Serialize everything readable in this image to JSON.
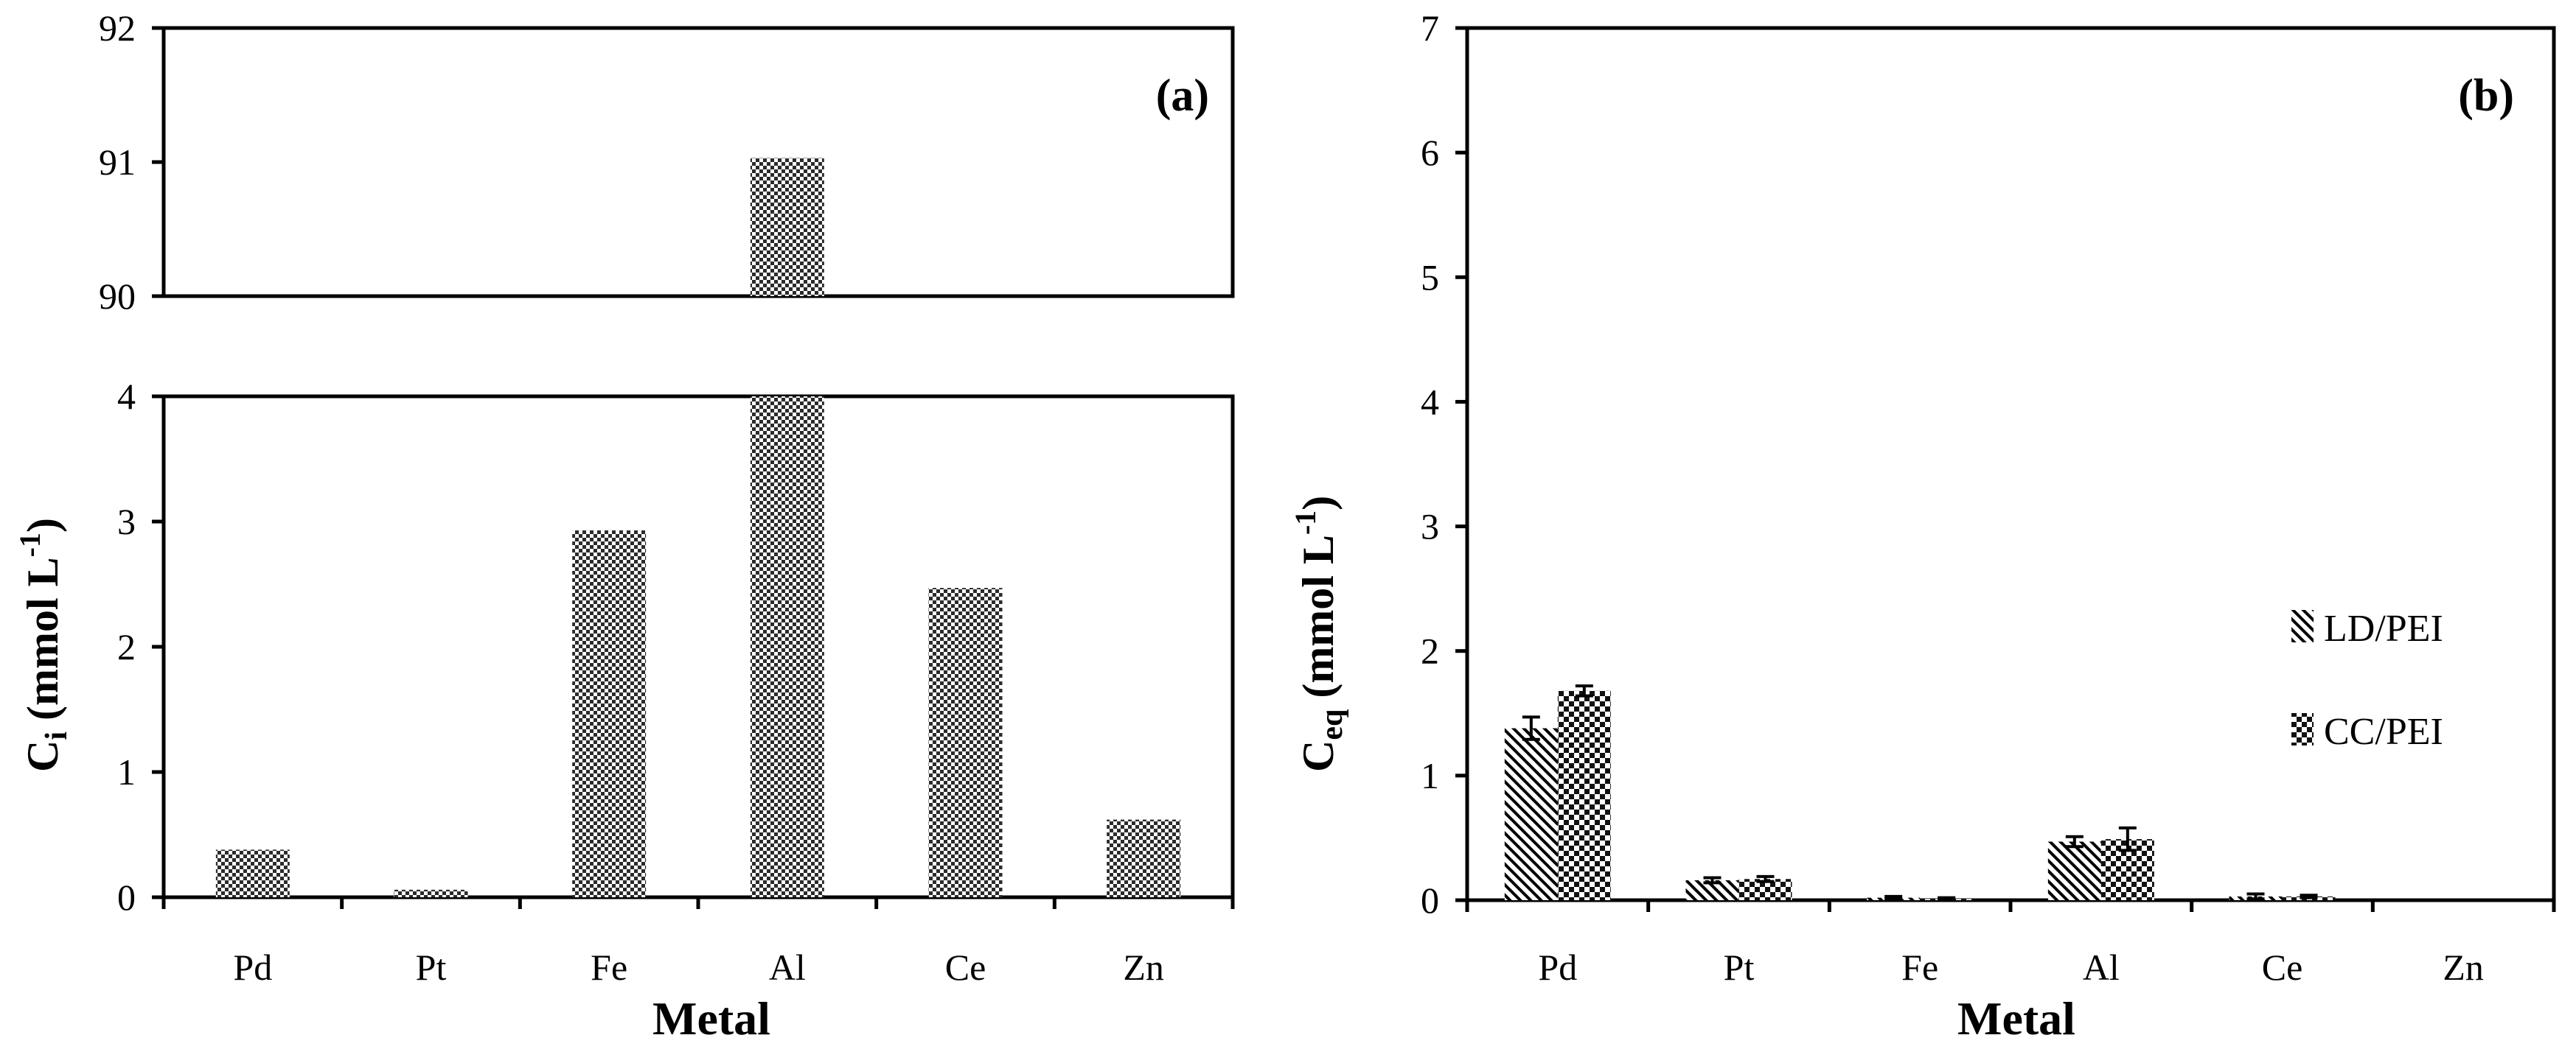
{
  "chart_data": [
    {
      "type": "bar",
      "panel_label": "(a)",
      "broken_axis": true,
      "categories": [
        "Pd",
        "Pt",
        "Fe",
        "Al",
        "Ce",
        "Zn"
      ],
      "values": [
        0.38,
        0.06,
        2.93,
        91.03,
        2.47,
        0.62
      ],
      "xlabel": "Metal",
      "ylabel": "Ci (mmol L-1)",
      "ylabel_parts": {
        "main": "C",
        "sub": "i",
        "unit": " (mmol L",
        "sup": "-1",
        "close": ")"
      },
      "ylim_lower": [
        0,
        4
      ],
      "ylim_upper": [
        90,
        92
      ],
      "yticks_lower": [
        "0",
        "1",
        "2",
        "3",
        "4"
      ],
      "yticks_upper": [
        "90",
        "91",
        "92"
      ],
      "pattern": "checkerboard"
    },
    {
      "type": "bar",
      "panel_label": "(b)",
      "categories": [
        "Pd",
        "Pt",
        "Fe",
        "Al",
        "Ce",
        "Zn"
      ],
      "series": [
        {
          "name": "LD/PEI",
          "pattern": "diagonal-hatch",
          "values": [
            1.38,
            0.16,
            0.02,
            0.47,
            0.03,
            0.0
          ],
          "errors": [
            0.09,
            0.02,
            0.01,
            0.04,
            0.02,
            0.0
          ]
        },
        {
          "name": "CC/PEI",
          "pattern": "checkerboard",
          "values": [
            1.68,
            0.17,
            0.01,
            0.49,
            0.03,
            0.0
          ],
          "errors": [
            0.04,
            0.02,
            0.01,
            0.09,
            0.01,
            0.0
          ]
        }
      ],
      "xlabel": "Metal",
      "ylabel": "Ceq (mmol L-1)",
      "ylabel_parts": {
        "main": "C",
        "sub": "eq",
        "unit": " (mmol L",
        "sup": "-1",
        "close": ")"
      },
      "ylim": [
        0,
        7
      ],
      "yticks": [
        "0",
        "1",
        "2",
        "3",
        "4",
        "5",
        "6",
        "7"
      ],
      "legend_position": "right"
    }
  ]
}
